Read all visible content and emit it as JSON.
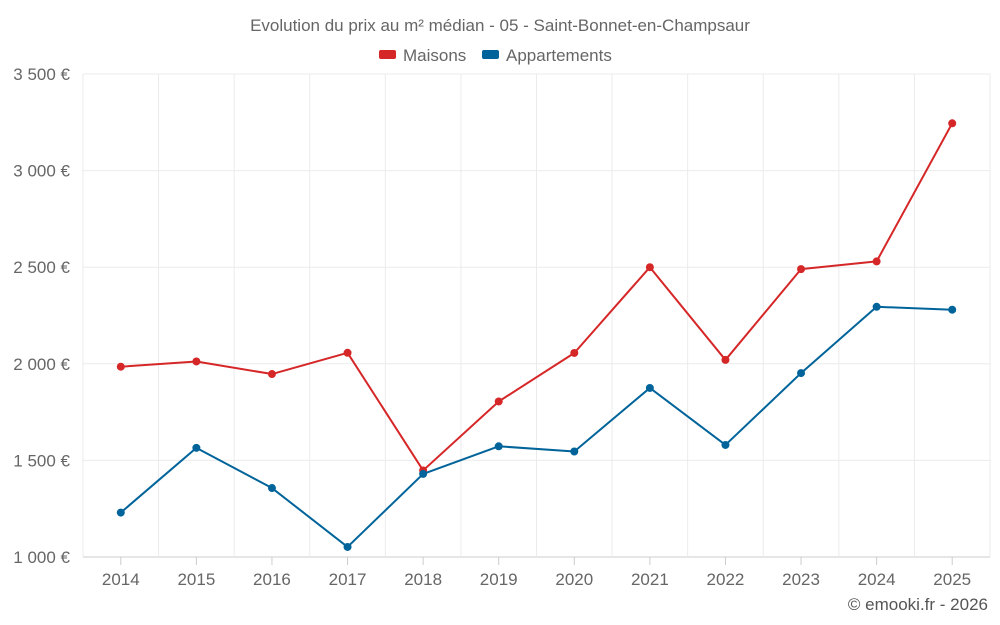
{
  "chart_data": {
    "type": "line",
    "title": "Evolution du prix au m² médian - 05 - Saint-Bonnet-en-Champsaur",
    "categories": [
      "2014",
      "2015",
      "2016",
      "2017",
      "2018",
      "2019",
      "2020",
      "2021",
      "2022",
      "2023",
      "2024",
      "2025"
    ],
    "series": [
      {
        "name": "Maisons",
        "color": "#d62728",
        "values": [
          1985,
          2012,
          1947,
          2057,
          1448,
          1805,
          2056,
          2500,
          2020,
          2490,
          2530,
          3245
        ]
      },
      {
        "name": "Appartements",
        "color": "#00649a",
        "values": [
          1230,
          1565,
          1357,
          1052,
          1430,
          1573,
          1546,
          1875,
          1580,
          1952,
          2295,
          2280
        ]
      }
    ],
    "ylim": [
      1000,
      3500
    ],
    "yticks": [
      1000,
      1500,
      2000,
      2500,
      3000,
      3500
    ],
    "ytick_labels": [
      "1 000 €",
      "1 500 €",
      "2 000 €",
      "2 500 €",
      "3 000 €",
      "3 500 €"
    ],
    "xlabel": "",
    "ylabel": "",
    "grid": true,
    "legend_position": "top-center"
  },
  "credit": "© emooki.fr - 2026"
}
